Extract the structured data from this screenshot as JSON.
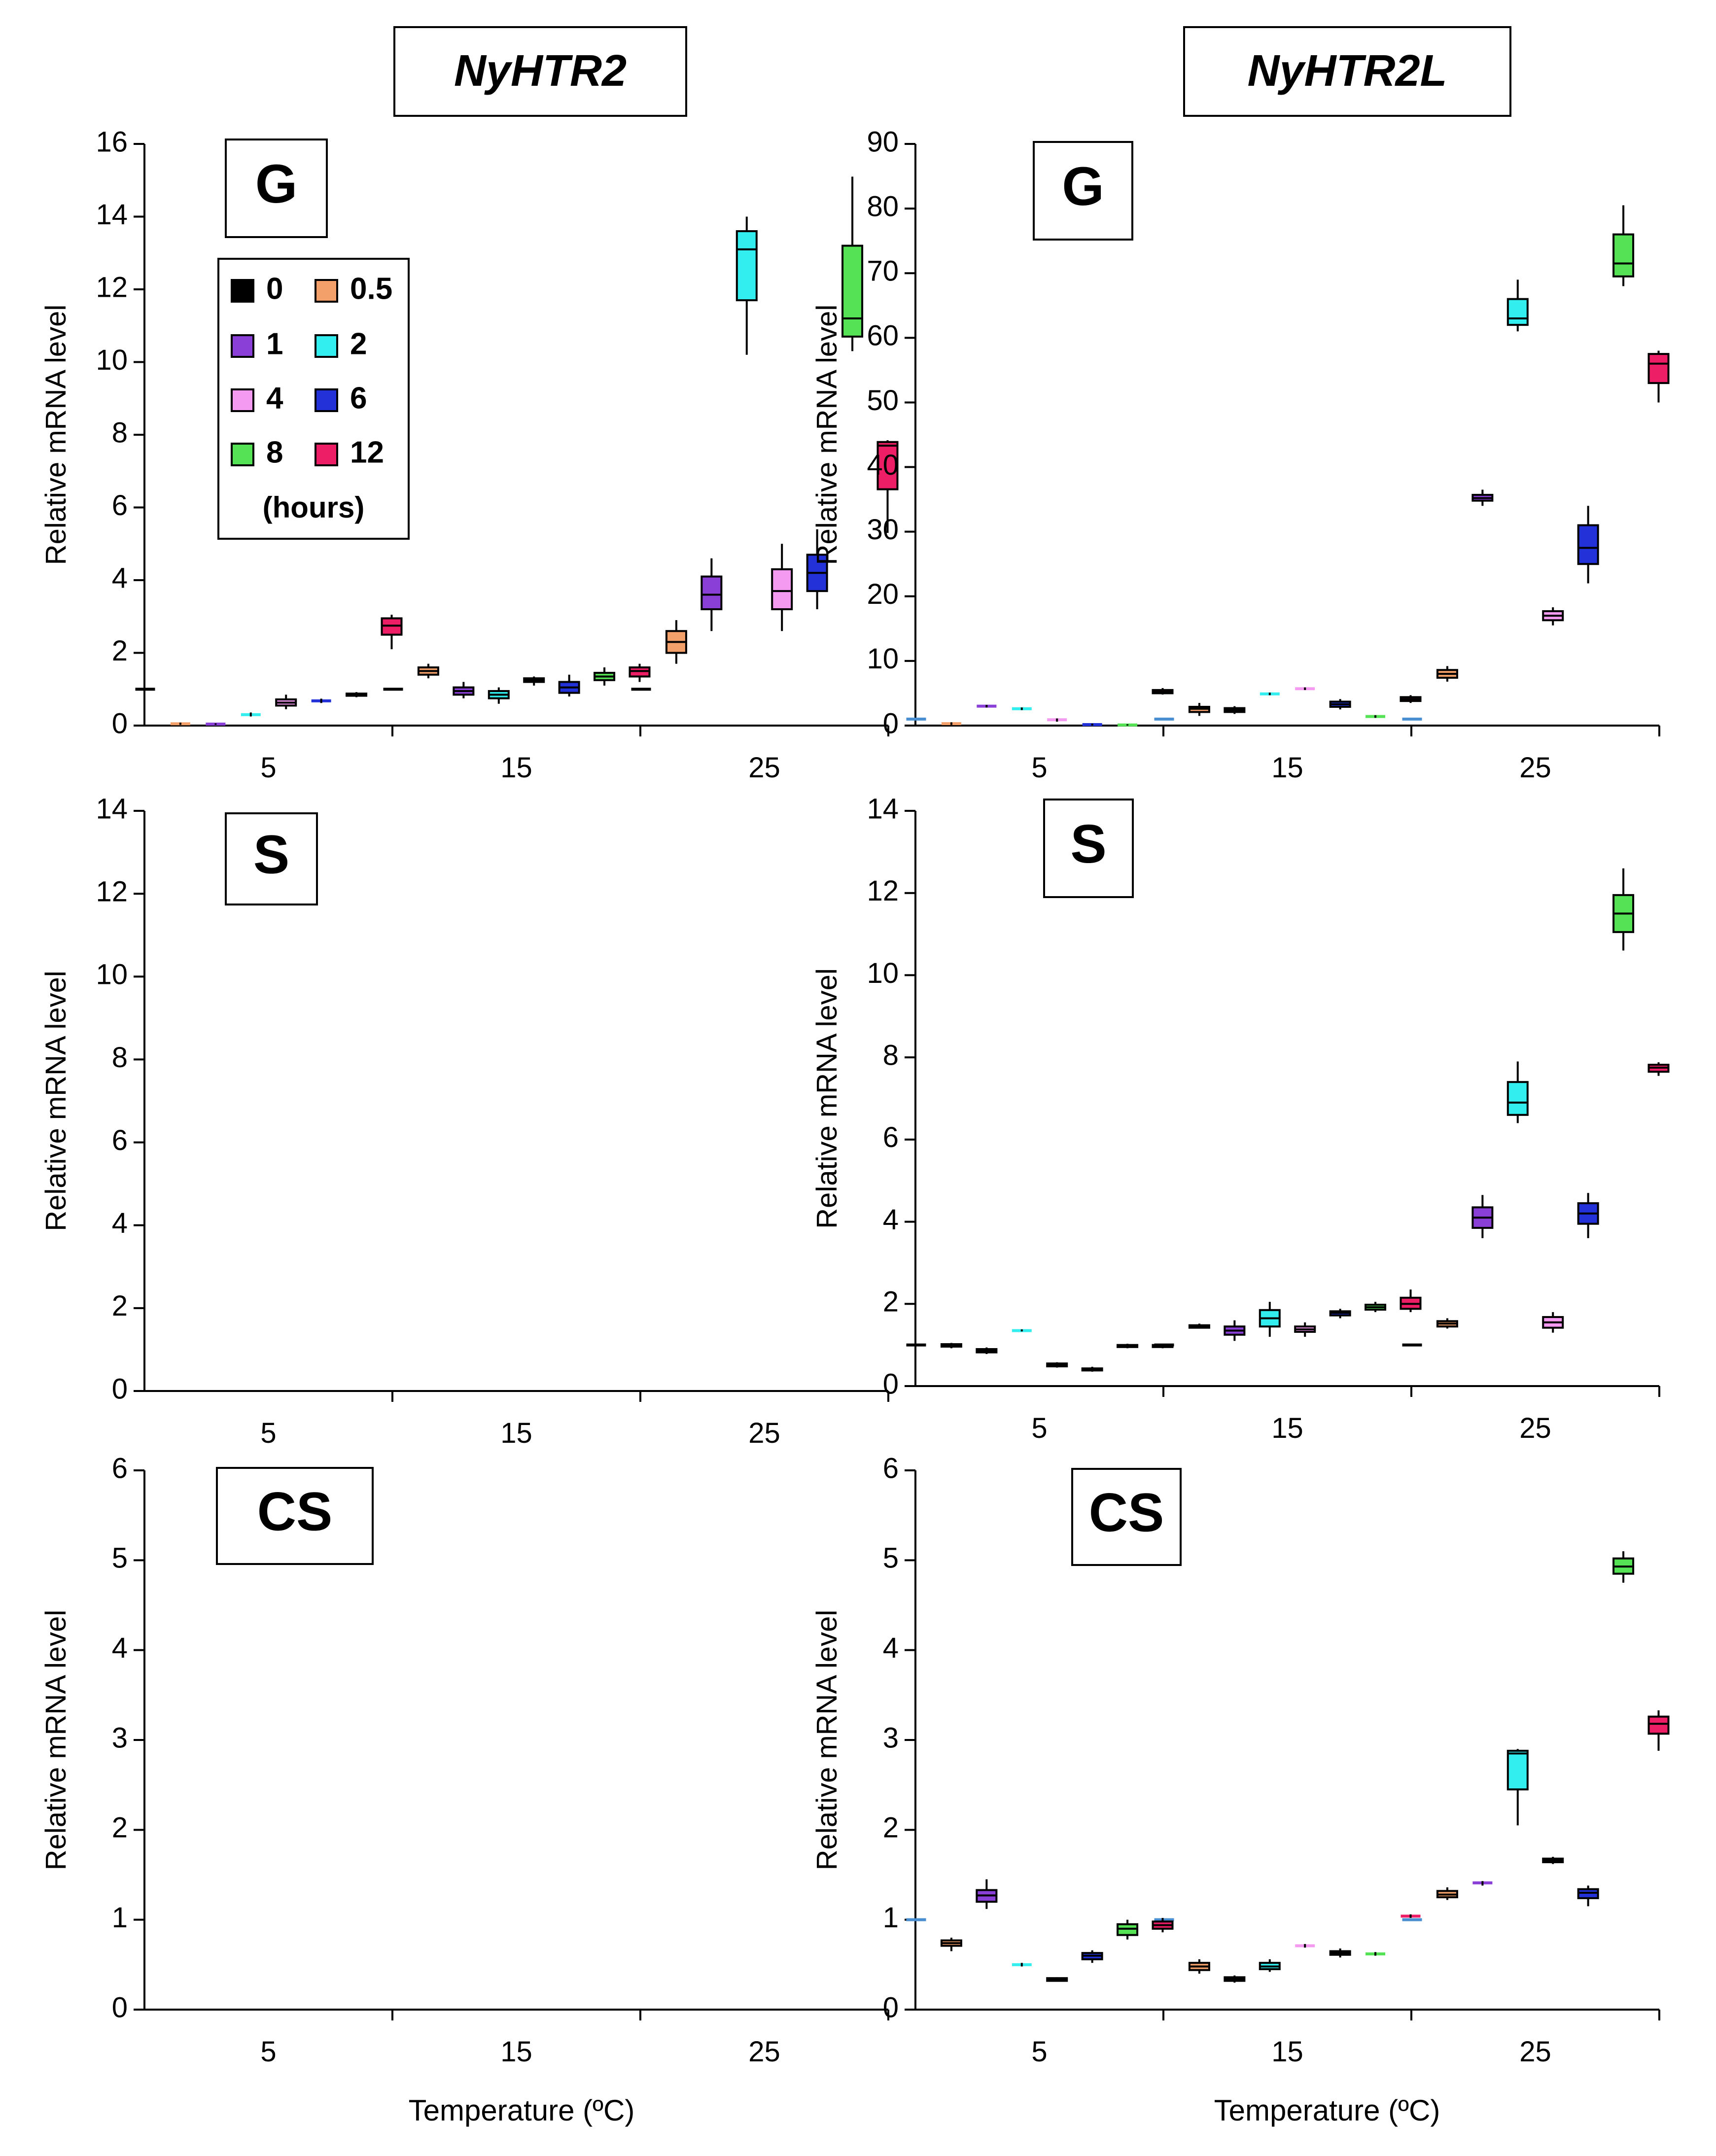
{
  "headers": {
    "left": "NyHTR2",
    "right": "NyHTR2L"
  },
  "ylabel": "Relative  mRNA level",
  "xlabel": "Temperature (ºC)",
  "legend": {
    "items": [
      {
        "label": "0",
        "color": "#000000"
      },
      {
        "label": "0.5",
        "color": "#f4a06a"
      },
      {
        "label": "1",
        "color": "#8a3fd6"
      },
      {
        "label": "2",
        "color": "#33eeee"
      },
      {
        "label": "4",
        "color": "#f49af0"
      },
      {
        "label": "6",
        "color": "#2232d8"
      },
      {
        "label": "8",
        "color": "#55e355"
      },
      {
        "label": "12",
        "color": "#ee1e66"
      }
    ],
    "unit": "(hours)"
  },
  "chart_data": [
    {
      "type": "box",
      "gene": "NyHTR2",
      "panel_label": "G",
      "categories": [
        "5",
        "15",
        "25"
      ],
      "ylim": [
        0,
        16
      ],
      "yticks": [
        0,
        2,
        4,
        6,
        8,
        10,
        12,
        14,
        16
      ],
      "series": [
        {
          "name": "0",
          "color": "#000000",
          "boxes": [
            [
              1,
              1,
              1,
              1,
              1
            ],
            [
              1,
              1,
              1,
              1,
              1
            ],
            [
              1,
              1,
              1,
              1,
              1
            ]
          ]
        },
        {
          "name": "0.5",
          "color": "#f4a06a",
          "boxes": [
            [
              0.02,
              0.03,
              0.05,
              0.07,
              0.08
            ],
            [
              1.3,
              1.4,
              1.5,
              1.6,
              1.7
            ],
            [
              1.7,
              2,
              2.3,
              2.6,
              2.9
            ]
          ]
        },
        {
          "name": "1",
          "color": "#8a3fd6",
          "boxes": [
            [
              0.02,
              0.03,
              0.04,
              0.05,
              0.06
            ],
            [
              0.75,
              0.85,
              0.95,
              1.05,
              1.2
            ],
            [
              2.6,
              3.2,
              3.6,
              4.1,
              4.6
            ]
          ]
        },
        {
          "name": "2",
          "color": "#33eeee",
          "boxes": [
            [
              0.25,
              0.28,
              0.3,
              0.33,
              0.36
            ],
            [
              0.6,
              0.75,
              0.85,
              0.95,
              1.05
            ],
            [
              10.2,
              11.7,
              13.1,
              13.6,
              14
            ]
          ]
        },
        {
          "name": "4",
          "color": "#f49af0",
          "boxes": [
            [
              0.45,
              0.55,
              0.63,
              0.72,
              0.85
            ],
            [
              1.1,
              1.2,
              1.25,
              1.3,
              1.35
            ],
            [
              2.6,
              3.2,
              3.7,
              4.3,
              5
            ]
          ]
        },
        {
          "name": "6",
          "color": "#2232d8",
          "boxes": [
            [
              0.62,
              0.66,
              0.68,
              0.7,
              0.74
            ],
            [
              0.8,
              0.9,
              1.05,
              1.2,
              1.4
            ],
            [
              3.2,
              3.7,
              4.2,
              4.7,
              5.4
            ]
          ]
        },
        {
          "name": "8",
          "color": "#55e355",
          "boxes": [
            [
              0.78,
              0.82,
              0.85,
              0.88,
              0.92
            ],
            [
              1.1,
              1.25,
              1.35,
              1.45,
              1.6
            ],
            [
              10.3,
              10.7,
              11.2,
              13.2,
              15.1
            ]
          ]
        },
        {
          "name": "12",
          "color": "#ee1e66",
          "boxes": [
            [
              2.1,
              2.5,
              2.75,
              2.95,
              3.05
            ],
            [
              1.2,
              1.35,
              1.5,
              1.6,
              1.7
            ],
            [
              5.3,
              6.5,
              7.7,
              7.8,
              7.85
            ]
          ]
        }
      ]
    },
    {
      "type": "box",
      "gene": "NyHTR2L",
      "panel_label": "G",
      "categories": [
        "5",
        "15",
        "25"
      ],
      "ylim": [
        0,
        90
      ],
      "yticks": [
        0,
        10,
        20,
        30,
        40,
        50,
        60,
        70,
        80,
        90
      ],
      "series": [
        {
          "name": "0",
          "color": "#4a8ed2",
          "boxes": [
            [
              1,
              1,
              1,
              1,
              1
            ],
            [
              1,
              1,
              1,
              1,
              1
            ],
            [
              1,
              1,
              1,
              1,
              1
            ]
          ]
        },
        {
          "name": "0.5",
          "color": "#f4a06a",
          "boxes": [
            [
              0.1,
              0.2,
              0.3,
              0.4,
              0.5
            ],
            [
              1.5,
              2.1,
              2.6,
              2.9,
              3.5
            ],
            [
              6.8,
              7.4,
              8,
              8.6,
              9.2
            ]
          ]
        },
        {
          "name": "1",
          "color": "#8a3fd6",
          "boxes": [
            [
              2.8,
              2.9,
              3,
              3.1,
              3.2
            ],
            [
              1.8,
              2.1,
              2.4,
              2.7,
              3
            ],
            [
              34,
              34.8,
              35.2,
              35.7,
              36.5
            ]
          ]
        },
        {
          "name": "2",
          "color": "#33eeee",
          "boxes": [
            [
              2.4,
              2.5,
              2.6,
              2.7,
              2.8
            ],
            [
              4.7,
              4.8,
              4.9,
              5,
              5.1
            ],
            [
              61,
              62,
              63,
              66,
              69
            ]
          ]
        },
        {
          "name": "4",
          "color": "#f49af0",
          "boxes": [
            [
              0.6,
              0.8,
              0.9,
              1,
              1.1
            ],
            [
              5.5,
              5.6,
              5.7,
              5.8,
              5.9
            ],
            [
              15.5,
              16.3,
              17,
              17.7,
              18.3
            ]
          ]
        },
        {
          "name": "6",
          "color": "#2232d8",
          "boxes": [
            [
              0,
              0.1,
              0.15,
              0.2,
              0.3
            ],
            [
              2.5,
              2.9,
              3.3,
              3.7,
              4.1
            ],
            [
              22,
              25,
              27.5,
              31,
              34
            ]
          ]
        },
        {
          "name": "8",
          "color": "#55e355",
          "boxes": [
            [
              0,
              0.05,
              0.1,
              0.15,
              0.2
            ],
            [
              1.2,
              1.3,
              1.4,
              1.5,
              1.6
            ],
            [
              68,
              69.5,
              71.5,
              76,
              80.5
            ]
          ]
        },
        {
          "name": "12",
          "color": "#ee1e66",
          "boxes": [
            [
              4.8,
              5,
              5.2,
              5.5,
              5.8
            ],
            [
              3.5,
              3.8,
              4.1,
              4.4,
              4.7
            ],
            [
              50,
              53,
              56,
              57.5,
              58
            ]
          ]
        }
      ]
    },
    {
      "type": "box",
      "gene": "NyHTR2",
      "panel_label": "S",
      "categories": [
        "5",
        "15",
        "25"
      ],
      "ylim": [
        0,
        14
      ],
      "yticks": [
        0,
        2,
        4,
        6,
        8,
        10,
        12,
        14
      ],
      "series": []
    },
    {
      "type": "box",
      "gene": "NyHTR2L",
      "panel_label": "S",
      "categories": [
        "5",
        "15",
        "25"
      ],
      "ylim": [
        0,
        14
      ],
      "yticks": [
        0,
        2,
        4,
        6,
        8,
        10,
        12,
        14
      ],
      "series": [
        {
          "name": "0",
          "color": "#000000",
          "boxes": [
            [
              1,
              1,
              1,
              1,
              1
            ],
            [
              1,
              1,
              1,
              1,
              1
            ],
            [
              1,
              1,
              1,
              1,
              1
            ]
          ]
        },
        {
          "name": "0.5",
          "color": "#f4a06a",
          "boxes": [
            [
              0.92,
              0.96,
              1,
              1.02,
              1.05
            ],
            [
              1.4,
              1.42,
              1.45,
              1.48,
              1.52
            ],
            [
              1.4,
              1.45,
              1.52,
              1.58,
              1.65
            ]
          ]
        },
        {
          "name": "1",
          "color": "#8a3fd6",
          "boxes": [
            [
              0.78,
              0.82,
              0.86,
              0.9,
              0.94
            ],
            [
              1.1,
              1.25,
              1.35,
              1.45,
              1.6
            ],
            [
              3.6,
              3.85,
              4.1,
              4.35,
              4.65
            ]
          ]
        },
        {
          "name": "2",
          "color": "#33eeee",
          "boxes": [
            [
              1.33,
              1.34,
              1.35,
              1.36,
              1.38
            ],
            [
              1.2,
              1.45,
              1.65,
              1.85,
              2.05
            ],
            [
              6.4,
              6.6,
              6.9,
              7.4,
              7.9
            ]
          ]
        },
        {
          "name": "4",
          "color": "#f49af0",
          "boxes": [
            [
              0.45,
              0.48,
              0.52,
              0.55,
              0.58
            ],
            [
              1.2,
              1.32,
              1.38,
              1.45,
              1.55
            ],
            [
              1.3,
              1.42,
              1.55,
              1.68,
              1.8
            ]
          ]
        },
        {
          "name": "6",
          "color": "#2232d8",
          "boxes": [
            [
              0.35,
              0.38,
              0.4,
              0.43,
              0.47
            ],
            [
              1.65,
              1.72,
              1.78,
              1.82,
              1.88
            ],
            [
              3.6,
              3.95,
              4.2,
              4.45,
              4.7
            ]
          ]
        },
        {
          "name": "8",
          "color": "#55e355",
          "boxes": [
            [
              0.92,
              0.95,
              0.98,
              1,
              1.03
            ],
            [
              1.8,
              1.86,
              1.92,
              1.98,
              2.05
            ],
            [
              10.6,
              11.05,
              11.5,
              11.95,
              12.6
            ]
          ]
        },
        {
          "name": "12",
          "color": "#ee1e66",
          "boxes": [
            [
              0.92,
              0.95,
              0.98,
              1,
              1.03
            ],
            [
              1.8,
              1.88,
              2,
              2.15,
              2.35
            ],
            [
              7.55,
              7.65,
              7.75,
              7.82,
              7.88
            ]
          ]
        }
      ]
    },
    {
      "type": "box",
      "gene": "NyHTR2",
      "panel_label": "CS",
      "categories": [
        "5",
        "15",
        "25"
      ],
      "ylim": [
        0,
        6
      ],
      "yticks": [
        0,
        1,
        2,
        3,
        4,
        5,
        6
      ],
      "series": []
    },
    {
      "type": "box",
      "gene": "NyHTR2L",
      "panel_label": "CS",
      "categories": [
        "5",
        "15",
        "25"
      ],
      "ylim": [
        0,
        6
      ],
      "yticks": [
        0,
        1,
        2,
        3,
        4,
        5,
        6
      ],
      "series": [
        {
          "name": "0",
          "color": "#4a8ed2",
          "boxes": [
            [
              1,
              1,
              1,
              1,
              1
            ],
            [
              1,
              1,
              1,
              1,
              1
            ],
            [
              1,
              1,
              1,
              1,
              1
            ]
          ]
        },
        {
          "name": "0.5",
          "color": "#f4a06a",
          "boxes": [
            [
              0.65,
              0.71,
              0.74,
              0.77,
              0.8
            ],
            [
              0.4,
              0.44,
              0.48,
              0.52,
              0.56
            ],
            [
              1.22,
              1.25,
              1.28,
              1.32,
              1.36
            ]
          ]
        },
        {
          "name": "1",
          "color": "#8a3fd6",
          "boxes": [
            [
              1.12,
              1.2,
              1.27,
              1.33,
              1.45
            ],
            [
              0.3,
              0.32,
              0.34,
              0.36,
              0.38
            ],
            [
              1.38,
              1.4,
              1.41,
              1.42,
              1.43
            ]
          ]
        },
        {
          "name": "2",
          "color": "#33eeee",
          "boxes": [
            [
              0.48,
              0.49,
              0.5,
              0.51,
              0.52
            ],
            [
              0.42,
              0.45,
              0.48,
              0.52,
              0.56
            ],
            [
              2.05,
              2.45,
              2.85,
              2.88,
              2.9
            ]
          ]
        },
        {
          "name": "4",
          "color": "#f49af0",
          "boxes": [
            [
              0.31,
              0.32,
              0.34,
              0.35,
              0.36
            ],
            [
              0.69,
              0.7,
              0.71,
              0.72,
              0.73
            ],
            [
              1.62,
              1.64,
              1.66,
              1.68,
              1.7
            ]
          ]
        },
        {
          "name": "6",
          "color": "#2232d8",
          "boxes": [
            [
              0.52,
              0.56,
              0.6,
              0.63,
              0.66
            ],
            [
              0.58,
              0.61,
              0.63,
              0.65,
              0.68
            ],
            [
              1.15,
              1.24,
              1.3,
              1.34,
              1.38
            ]
          ]
        },
        {
          "name": "8",
          "color": "#55e355",
          "boxes": [
            [
              0.78,
              0.83,
              0.9,
              0.95,
              1
            ],
            [
              0.6,
              0.61,
              0.62,
              0.63,
              0.64
            ],
            [
              4.75,
              4.85,
              4.93,
              5.02,
              5.1
            ]
          ]
        },
        {
          "name": "12",
          "color": "#ee1e66",
          "boxes": [
            [
              0.86,
              0.9,
              0.94,
              0.98,
              1.02
            ],
            [
              1.02,
              1.03,
              1.04,
              1.05,
              1.06
            ],
            [
              2.88,
              3.07,
              3.18,
              3.26,
              3.33
            ]
          ]
        }
      ]
    }
  ]
}
